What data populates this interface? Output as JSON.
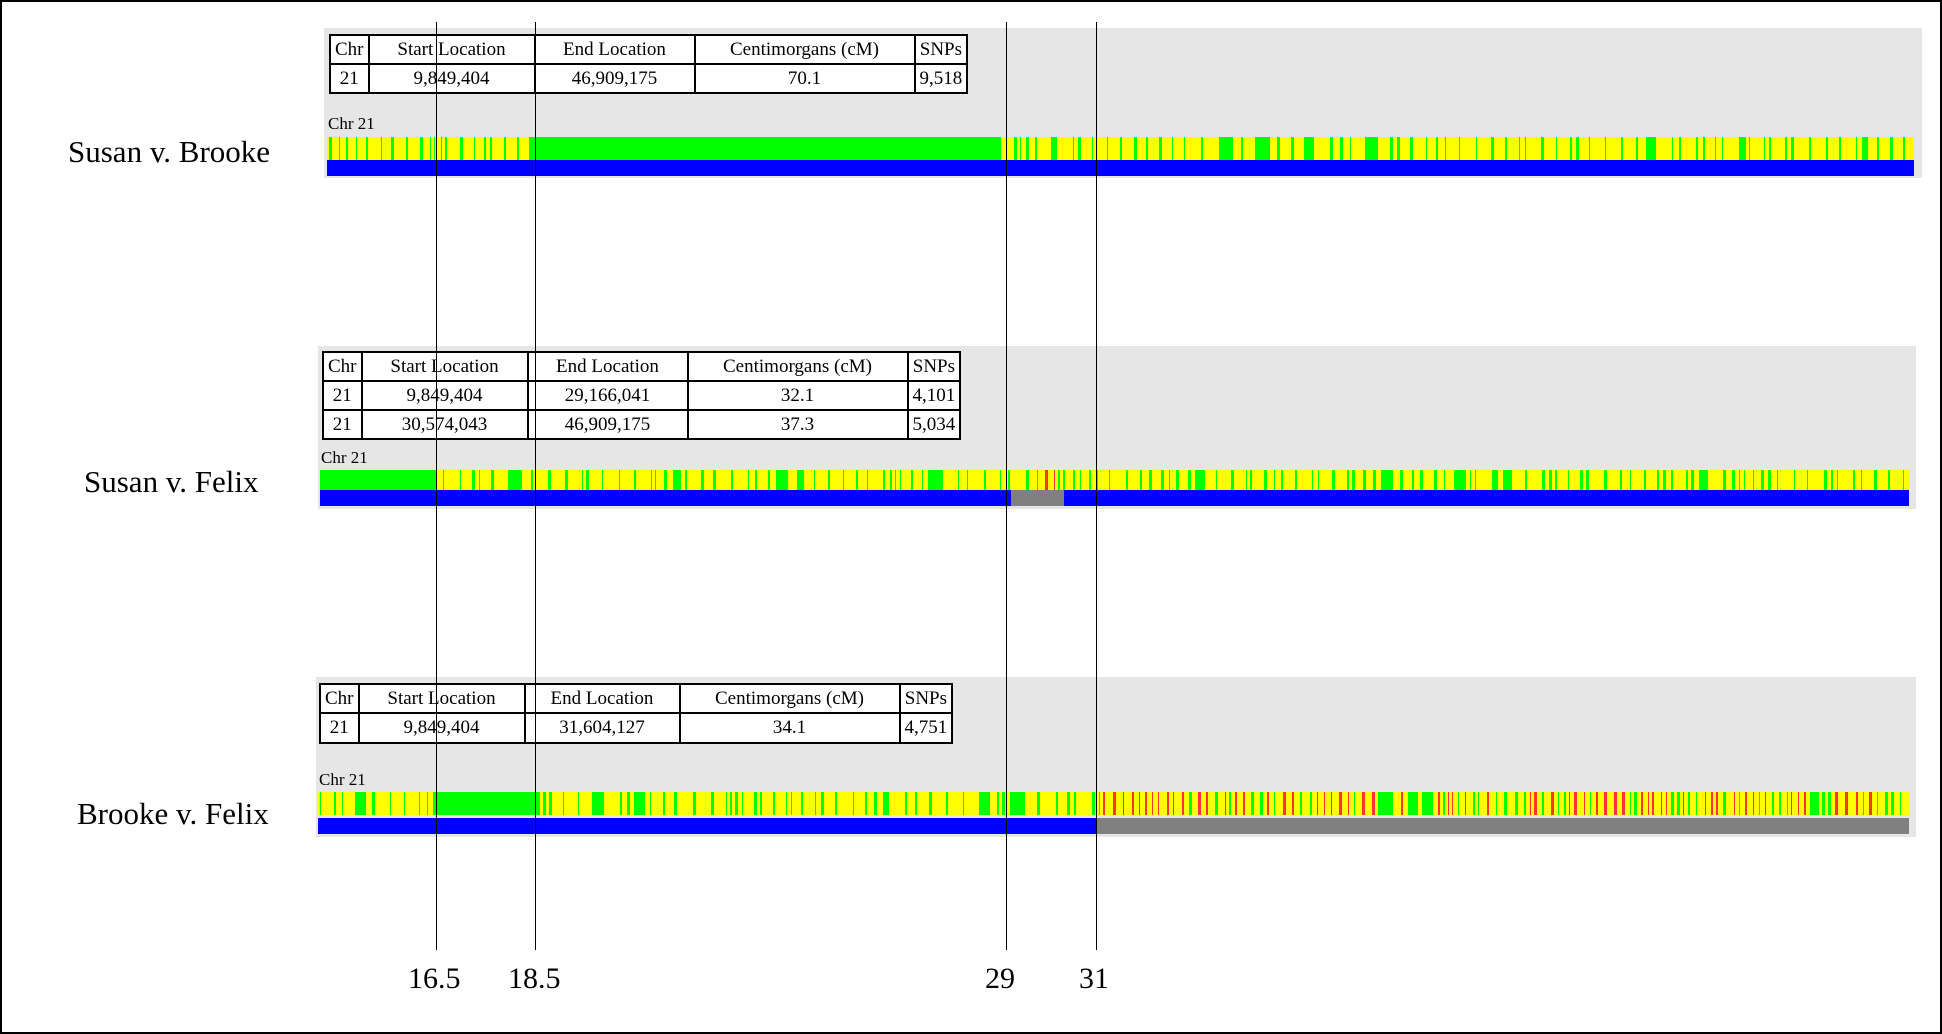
{
  "table_headers": [
    "Chr",
    "Start Location",
    "End Location",
    "Centimorgans (cM)",
    "SNPs"
  ],
  "chr_label": "Chr 21",
  "comparisons": [
    {
      "id": "susan-v-brooke",
      "label": "Susan v. Brooke",
      "rows": [
        [
          "21",
          "9,849,404",
          "46,909,175",
          "70.1",
          "9,518"
        ]
      ],
      "green_spans": [
        [
          0.135,
          0.425
        ]
      ],
      "match_gaps": []
    },
    {
      "id": "susan-v-felix",
      "label": "Susan v. Felix",
      "rows": [
        [
          "21",
          "9,849,404",
          "29,166,041",
          "32.1",
          "4,101"
        ],
        [
          "21",
          "30,574,043",
          "46,909,175",
          "37.3",
          "5,034"
        ]
      ],
      "green_spans": [
        [
          0.0,
          0.073
        ]
      ],
      "match_gaps": [
        [
          0.435,
          0.468
        ]
      ]
    },
    {
      "id": "brooke-v-felix",
      "label": "Brooke v. Felix",
      "rows": [
        [
          "21",
          "9,849,404",
          "31,604,127",
          "34.1",
          "4,751"
        ]
      ],
      "green_spans": [
        [
          0.072,
          0.135
        ]
      ],
      "match_gaps": [
        [
          0.489,
          1.0
        ]
      ]
    }
  ],
  "reference_lines": [
    "16.5",
    "18.5",
    "29",
    "31"
  ],
  "colors": {
    "half_match": "#ffff00",
    "full_match": "#00ff00",
    "no_match": "#ff3333",
    "match_segment": "#0000ff",
    "no_segment": "#808080",
    "panel_background": "#e6e6e6"
  }
}
